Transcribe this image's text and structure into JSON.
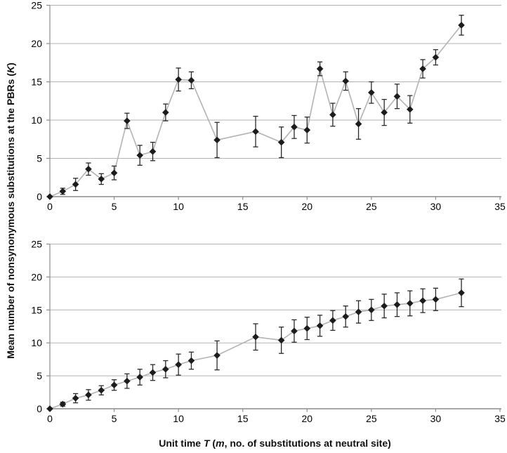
{
  "figure": {
    "y_axis_title": {
      "part1": "Mean number of nonsynonymous substitutions at the PBRs (",
      "part2": "K",
      "part3": ")"
    },
    "x_axis_title": {
      "part1": "Unit time ",
      "part2": "T",
      "part3": " (",
      "part4": "m",
      "part5": ", no. of substitutions at neutral site)"
    },
    "colors": {
      "gridline": "#b3b3b3",
      "axis": "#8c8c8c",
      "series_line": "#b3b3b3",
      "marker": "#1c1c1c",
      "error_bar": "#2a2a2a",
      "tick_label": "#000000"
    }
  },
  "chart_data": [
    {
      "type": "line",
      "panel": "top",
      "title": "",
      "xlabel": "Unit time T (m, no. of substitutions at neutral site)",
      "ylabel": "Mean number of nonsynonymous substitutions at the PBRs (K)",
      "xlim": [
        0,
        35
      ],
      "ylim": [
        0,
        25
      ],
      "xticks": [
        0,
        5,
        10,
        15,
        20,
        25,
        30,
        35
      ],
      "yticks": [
        0,
        5,
        10,
        15,
        20,
        25
      ],
      "grid": "horizontal",
      "legend": "none",
      "marker": "diamond",
      "x": [
        0,
        1,
        2,
        3,
        4,
        5,
        6,
        7,
        8,
        9,
        10,
        11,
        13,
        16,
        18,
        19,
        20,
        21,
        22,
        23,
        24,
        25,
        26,
        27,
        28,
        29,
        30,
        32
      ],
      "y": [
        0,
        0.7,
        1.6,
        3.6,
        2.3,
        3.1,
        9.9,
        5.4,
        5.9,
        11.0,
        15.3,
        15.2,
        7.4,
        8.5,
        7.1,
        9.1,
        8.7,
        16.7,
        10.7,
        15.1,
        9.5,
        13.6,
        11.0,
        13.1,
        11.4,
        16.7,
        18.2,
        22.4
      ],
      "yerr": [
        0,
        0.4,
        0.8,
        0.8,
        0.7,
        0.9,
        1.0,
        1.3,
        1.2,
        1.1,
        1.5,
        1.1,
        2.3,
        2.0,
        2.0,
        1.5,
        1.7,
        0.9,
        1.5,
        1.2,
        2.0,
        1.4,
        1.7,
        1.6,
        1.8,
        1.2,
        1.0,
        1.3
      ]
    },
    {
      "type": "line",
      "panel": "bottom",
      "title": "",
      "xlabel": "Unit time T (m, no. of substitutions at neutral site)",
      "ylabel": "Mean number of nonsynonymous substitutions at the PBRs (K)",
      "xlim": [
        0,
        35
      ],
      "ylim": [
        0,
        25
      ],
      "xticks": [
        0,
        5,
        10,
        15,
        20,
        25,
        30,
        35
      ],
      "yticks": [
        0,
        5,
        10,
        15,
        20,
        25
      ],
      "grid": "horizontal",
      "legend": "none",
      "marker": "diamond",
      "x": [
        0,
        1,
        2,
        3,
        4,
        5,
        6,
        7,
        8,
        9,
        10,
        11,
        13,
        16,
        18,
        19,
        20,
        21,
        22,
        23,
        24,
        25,
        26,
        27,
        28,
        29,
        30,
        32
      ],
      "y": [
        0,
        0.7,
        1.6,
        2.1,
        2.8,
        3.6,
        4.2,
        4.8,
        5.5,
        6.0,
        6.7,
        7.3,
        8.1,
        10.9,
        10.4,
        11.8,
        12.2,
        12.6,
        13.4,
        14.0,
        14.7,
        15.0,
        15.6,
        15.8,
        16.0,
        16.4,
        16.6,
        17.6
      ],
      "yerr": [
        0,
        0.3,
        0.7,
        0.8,
        0.7,
        0.8,
        1.1,
        1.2,
        1.2,
        1.3,
        1.6,
        1.3,
        2.2,
        2.0,
        2.0,
        1.7,
        1.7,
        1.6,
        1.5,
        1.6,
        1.7,
        1.6,
        1.8,
        1.8,
        1.9,
        1.8,
        1.7,
        2.1
      ]
    }
  ]
}
